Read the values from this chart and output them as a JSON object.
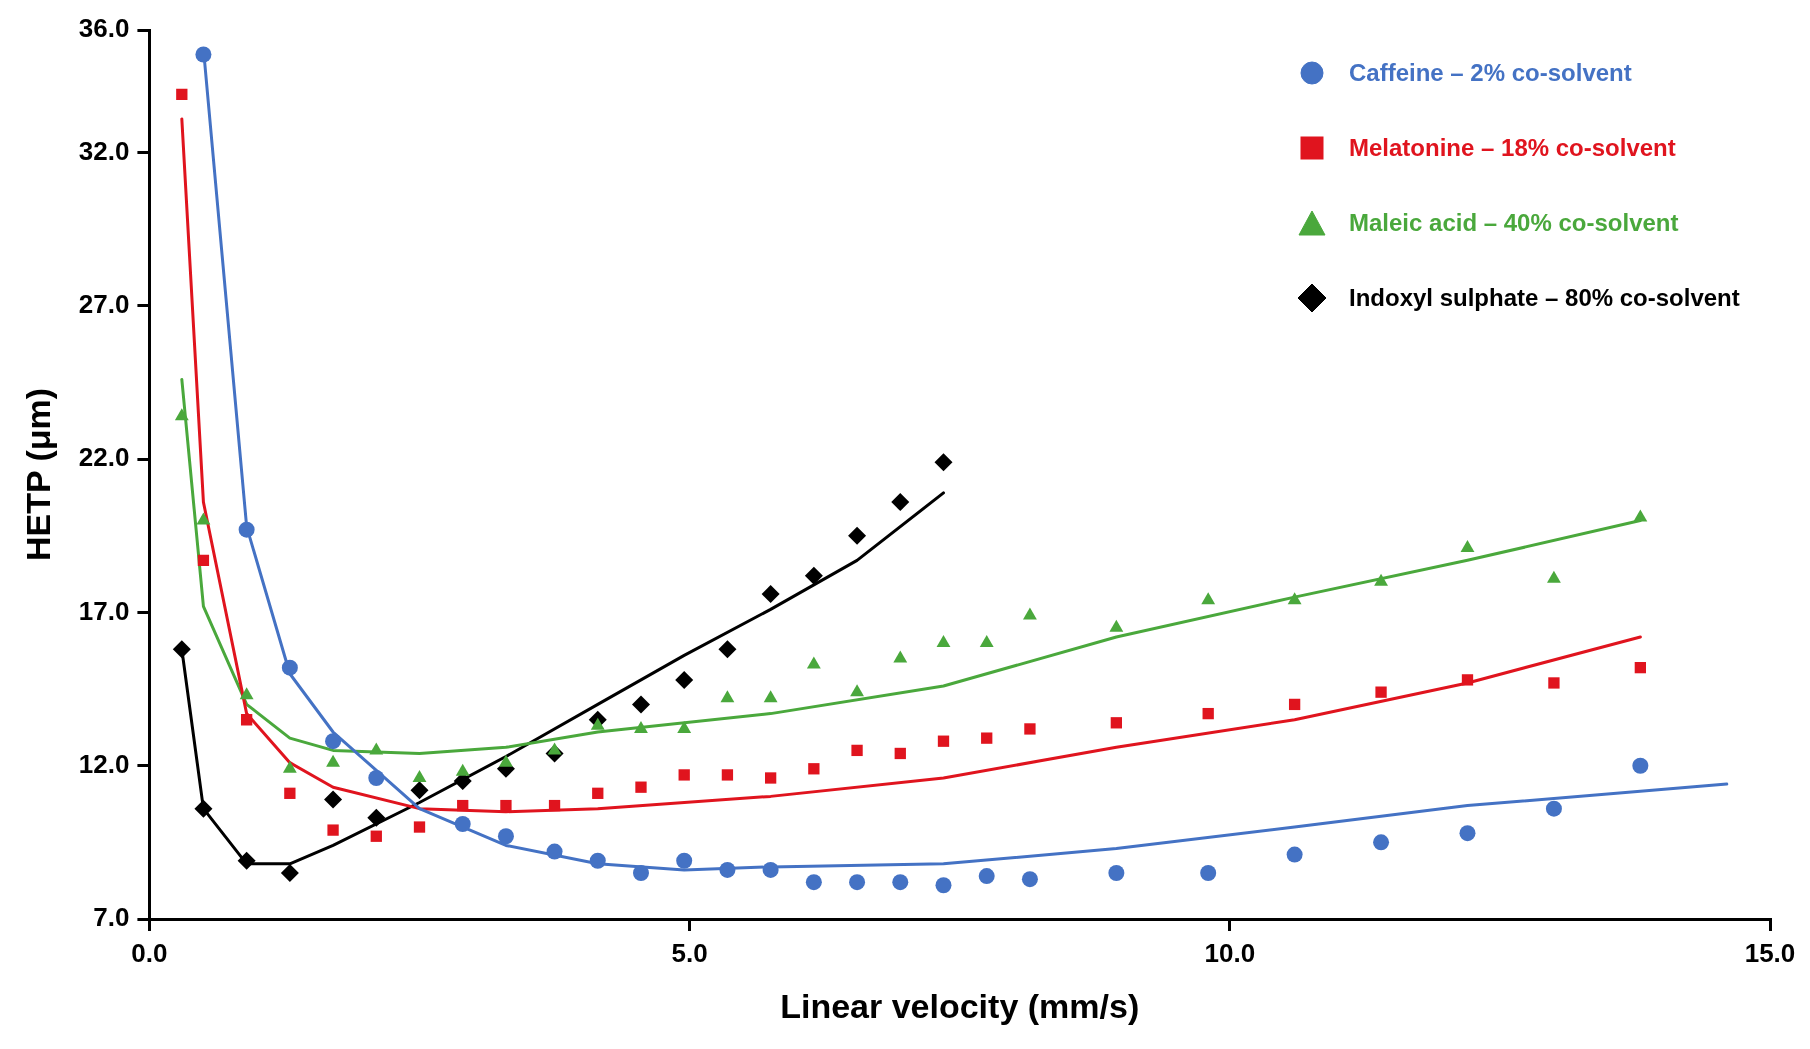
{
  "chart_data": {
    "type": "scatter",
    "xlabel": "Linear velocity (mm/s)",
    "ylabel": "HETP (μm)",
    "xlim": [
      0,
      15
    ],
    "xticks": [
      {
        "value": 0,
        "label": "0.0"
      },
      {
        "value": 5,
        "label": "5.0"
      },
      {
        "value": 10,
        "label": "10.0"
      },
      {
        "value": 15,
        "label": "15.0"
      }
    ],
    "ylim": [
      7,
      36
    ],
    "yticks": [
      {
        "value": 7,
        "label": "7.0"
      },
      {
        "value": 12,
        "label": "12.0"
      },
      {
        "value": 17,
        "label": "17.0"
      },
      {
        "value": 22,
        "label": "22.0"
      },
      {
        "value": 27,
        "label": "27.0"
      },
      {
        "value": 32,
        "label": "32.0"
      },
      {
        "value": 36,
        "label": "36.0"
      }
    ],
    "grid": false,
    "legend": "top right",
    "series": [
      {
        "name": "Caffeine – 2% co-solvent",
        "color": "#4472c4",
        "marker": "circle",
        "x": [
          0.5,
          0.9,
          1.3,
          1.7,
          2.1,
          2.9,
          3.3,
          3.75,
          4.15,
          4.55,
          4.95,
          5.35,
          5.75,
          6.15,
          6.55,
          6.95,
          7.35,
          7.75,
          8.15,
          8.95,
          9.8,
          10.6,
          11.4,
          12.2,
          13.0,
          13.8
        ],
        "values": [
          35.2,
          19.7,
          15.2,
          12.8,
          11.6,
          10.1,
          9.7,
          9.2,
          8.9,
          8.5,
          8.9,
          8.6,
          8.6,
          8.2,
          8.2,
          8.2,
          8.1,
          8.4,
          8.3,
          8.5,
          8.5,
          9.1,
          9.5,
          9.8,
          10.6,
          12.0
        ]
      },
      {
        "name": "Melatonine – 18% co-solvent",
        "color": "#e0141e",
        "marker": "square",
        "x": [
          0.3,
          0.5,
          0.9,
          1.3,
          1.7,
          2.1,
          2.5,
          2.9,
          3.3,
          3.75,
          4.15,
          4.55,
          4.95,
          5.35,
          5.75,
          6.15,
          6.55,
          6.95,
          7.35,
          7.75,
          8.15,
          8.95,
          9.8,
          10.6,
          11.4,
          12.2,
          13.0,
          13.8
        ],
        "values": [
          33.9,
          18.7,
          13.5,
          11.1,
          9.9,
          9.7,
          10.0,
          10.7,
          10.7,
          10.7,
          11.1,
          11.3,
          11.7,
          11.7,
          11.6,
          11.9,
          12.5,
          12.4,
          12.8,
          12.9,
          13.2,
          13.4,
          13.7,
          14.0,
          14.4,
          14.8,
          14.7,
          15.2
        ]
      },
      {
        "name": "Maleic acid – 40% co-solvent",
        "color": "#4aa83c",
        "marker": "triangle",
        "x": [
          0.3,
          0.5,
          0.9,
          1.3,
          1.7,
          2.1,
          2.5,
          2.9,
          3.3,
          3.75,
          4.15,
          4.55,
          4.95,
          5.35,
          5.75,
          6.15,
          6.55,
          6.95,
          7.35,
          7.75,
          8.15,
          8.95,
          9.8,
          10.6,
          11.4,
          12.2,
          13.0,
          13.8
        ],
        "values": [
          23.4,
          20.0,
          14.3,
          11.9,
          12.1,
          12.5,
          11.6,
          11.8,
          12.1,
          12.5,
          13.3,
          13.2,
          13.2,
          14.2,
          14.2,
          15.3,
          14.4,
          15.5,
          16.0,
          16.0,
          16.9,
          16.5,
          17.4,
          17.4,
          18.0,
          19.1,
          18.1,
          20.1
        ]
      },
      {
        "name": "Indoxyl sulphate – 80% co-solvent",
        "color": "#000000",
        "marker": "diamond",
        "x": [
          0.3,
          0.5,
          0.9,
          1.3,
          1.7,
          2.1,
          2.5,
          2.9,
          3.3,
          3.75,
          4.15,
          4.55,
          4.95,
          5.35,
          5.75,
          6.15,
          6.55,
          6.95,
          7.35
        ],
        "values": [
          15.8,
          10.6,
          8.9,
          8.5,
          10.9,
          10.3,
          11.2,
          11.5,
          11.9,
          12.4,
          13.5,
          14.0,
          14.8,
          15.8,
          17.6,
          18.2,
          19.5,
          20.6,
          21.9
        ]
      },
      {
        "type": "line",
        "color": "#4472c4",
        "marker": "none",
        "x": [
          0.5,
          0.9,
          1.3,
          1.7,
          2.5,
          3.3,
          4.15,
          4.95,
          5.75,
          7.35,
          8.95,
          10.6,
          12.2,
          14.6
        ],
        "values": [
          35.4,
          19.8,
          15.0,
          13.1,
          10.6,
          9.4,
          8.8,
          8.6,
          8.7,
          8.8,
          9.3,
          10.0,
          10.7,
          11.4
        ]
      },
      {
        "type": "line",
        "color": "#e0141e",
        "marker": "none",
        "x": [
          0.3,
          0.5,
          0.9,
          1.3,
          1.7,
          2.5,
          3.3,
          4.15,
          5.75,
          7.35,
          8.95,
          10.6,
          12.2,
          13.8
        ],
        "values": [
          33.1,
          20.6,
          13.7,
          12.1,
          11.3,
          10.6,
          10.5,
          10.6,
          11.0,
          11.6,
          12.6,
          13.5,
          14.7,
          16.2
        ]
      },
      {
        "type": "line",
        "color": "#4aa83c",
        "marker": "none",
        "x": [
          0.3,
          0.5,
          0.9,
          1.3,
          1.7,
          2.5,
          3.3,
          4.15,
          5.75,
          7.35,
          8.95,
          10.6,
          12.2,
          13.8
        ],
        "values": [
          24.6,
          17.2,
          14.0,
          12.9,
          12.5,
          12.4,
          12.6,
          13.1,
          13.7,
          14.6,
          16.2,
          17.5,
          18.7,
          20.0
        ]
      },
      {
        "type": "line",
        "color": "#000000",
        "marker": "none",
        "x": [
          0.3,
          0.5,
          0.9,
          1.3,
          1.7,
          2.5,
          3.3,
          4.15,
          4.95,
          5.75,
          6.55,
          7.35
        ],
        "values": [
          15.8,
          10.6,
          8.8,
          8.8,
          9.4,
          10.8,
          12.3,
          14.0,
          15.6,
          17.1,
          18.7,
          20.9
        ]
      }
    ]
  }
}
